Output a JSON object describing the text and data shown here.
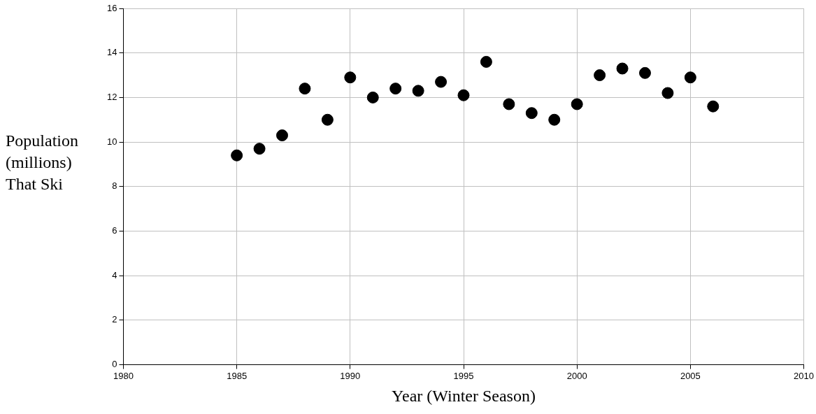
{
  "chart_data": {
    "type": "scatter",
    "xlabel": "Year (Winter Season)",
    "ylabel": "Population (millions) That Ski",
    "x": [
      1985,
      1986,
      1987,
      1988,
      1989,
      1990,
      1991,
      1992,
      1993,
      1994,
      1995,
      1996,
      1997,
      1998,
      1999,
      2000,
      2001,
      2002,
      2003,
      2004,
      2005,
      2006
    ],
    "series": [
      {
        "color": "#000000",
        "values": [
          9.4,
          9.7,
          10.3,
          12.4,
          11.0,
          12.9,
          12.0,
          12.4,
          12.3,
          12.7,
          12.1,
          13.6,
          11.7,
          11.3,
          11.0,
          11.7,
          13.0,
          13.3,
          13.1,
          12.2,
          12.9,
          11.6
        ]
      }
    ],
    "xlim": [
      1980,
      2010
    ],
    "xticks": [
      1980,
      1985,
      1990,
      1995,
      2000,
      2005,
      2010
    ],
    "ylim": [
      0,
      16
    ],
    "yticks": [
      0,
      2,
      4,
      6,
      8,
      10,
      12,
      14,
      16
    ],
    "grid": true,
    "legend": false,
    "marker": "circle"
  }
}
